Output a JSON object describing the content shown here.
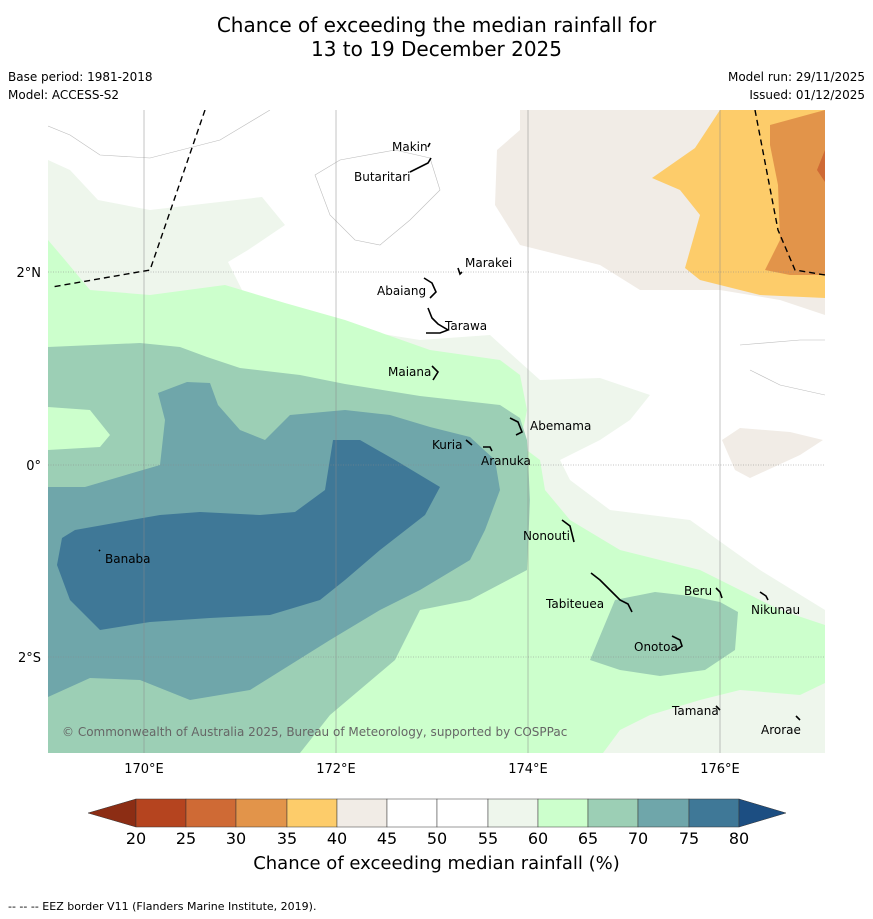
{
  "title": {
    "line1": "Chance of exceeding the median rainfall for",
    "line2": "13 to 19 December 2025"
  },
  "meta": {
    "base_period": "Base period: 1981-2018",
    "model": "Model: ACCESS-S2",
    "model_run": "Model run: 29/11/2025",
    "issued": "Issued: 01/12/2025"
  },
  "map": {
    "lon_ticks": [
      "170°E",
      "172°E",
      "174°E",
      "176°E"
    ],
    "lat_ticks": [
      "2°N",
      "0°",
      "2°S"
    ],
    "islands": [
      {
        "name": "Makin"
      },
      {
        "name": "Butaritari"
      },
      {
        "name": "Marakei"
      },
      {
        "name": "Abaiang"
      },
      {
        "name": "Tarawa"
      },
      {
        "name": "Maiana"
      },
      {
        "name": "Abemama"
      },
      {
        "name": "Kuria"
      },
      {
        "name": "Aranuka"
      },
      {
        "name": "Banaba"
      },
      {
        "name": "Nonouti"
      },
      {
        "name": "Tabiteuea"
      },
      {
        "name": "Beru"
      },
      {
        "name": "Nikunau"
      },
      {
        "name": "Onotoa"
      },
      {
        "name": "Tamana"
      },
      {
        "name": "Arorae"
      }
    ],
    "copyright": "© Commonwealth of Australia 2025, Bureau of Meteorology, supported by COSPPac"
  },
  "colorbar": {
    "title": "Chance of exceeding median rainfall (%)",
    "ticks": [
      "20",
      "25",
      "30",
      "35",
      "40",
      "45",
      "50",
      "55",
      "60",
      "65",
      "70",
      "75",
      "80"
    ],
    "colors": {
      "lt20": "#8c2d14",
      "b20_25": "#b5441f",
      "b25_30": "#cf6a35",
      "b30_35": "#e2944a",
      "b35_40": "#fdcc6a",
      "b40_45": "#f1ece6",
      "b45_55": "#ffffff",
      "b55_60": "#eef6ec",
      "b60_65": "#ccffcc",
      "b65_70": "#9ccfb5",
      "b70_75": "#6fa6aa",
      "b75_80": "#3f7897",
      "gt80": "#1c4e82"
    }
  },
  "footnote": "--  --  -- EEZ border V11 (Flanders Marine Institute, 2019)."
}
